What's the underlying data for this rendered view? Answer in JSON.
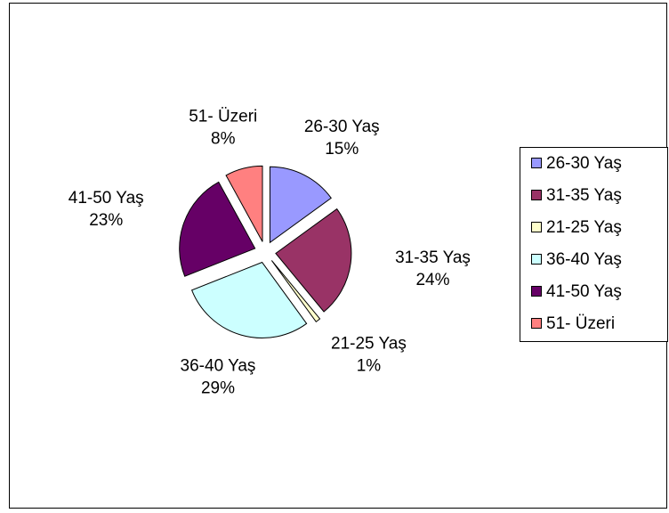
{
  "chart_data": {
    "type": "pie",
    "categories": [
      "26-30 Yaş",
      "31-35 Yaş",
      "21-25 Yaş",
      "36-40 Yaş",
      "41-50 Yaş",
      "51- Üzeri"
    ],
    "values": [
      15,
      24,
      1,
      29,
      23,
      8
    ],
    "value_labels": [
      "15%",
      "24%",
      "1%",
      "29%",
      "23%",
      "8%"
    ],
    "colors": [
      "#9999ff",
      "#993366",
      "#ffffcc",
      "#ccffff",
      "#660066",
      "#ff8080"
    ],
    "exploded": true,
    "legend": "right"
  }
}
